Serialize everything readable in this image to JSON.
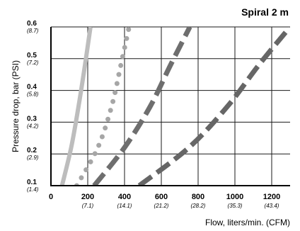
{
  "chart_data": {
    "type": "line",
    "title": "Spiral 2 m",
    "xlabel": "Flow, liters/min. (CFM)",
    "ylabel": "Pressure drop, bar (PSI)",
    "xlim": [
      0,
      1300
    ],
    "ylim": [
      0.1,
      0.6
    ],
    "x_ticks": [
      {
        "value": 0,
        "label": "0",
        "sub": ""
      },
      {
        "value": 200,
        "label": "200",
        "sub": "(7.1)"
      },
      {
        "value": 400,
        "label": "400",
        "sub": "(14.1)"
      },
      {
        "value": 600,
        "label": "600",
        "sub": "(21.2)"
      },
      {
        "value": 800,
        "label": "800",
        "sub": "(28.2)"
      },
      {
        "value": 1000,
        "label": "1000",
        "sub": "(35.3)"
      },
      {
        "value": 1200,
        "label": "1200",
        "sub": "(43.4)"
      }
    ],
    "y_ticks": [
      {
        "value": 0.1,
        "label": "0.1",
        "sub": "(1.4)"
      },
      {
        "value": 0.2,
        "label": "0.2",
        "sub": "(2.9)"
      },
      {
        "value": 0.3,
        "label": "0.3",
        "sub": "(4.2)"
      },
      {
        "value": 0.4,
        "label": "0.4",
        "sub": "(5.8)"
      },
      {
        "value": 0.5,
        "label": "0.5",
        "sub": "(7.2)"
      },
      {
        "value": 0.6,
        "label": "0.6",
        "sub": "(8.7)"
      }
    ],
    "grid": true,
    "series": [
      {
        "color": "#bdbdbd",
        "style": "solid",
        "points": [
          [
            60,
            0.1
          ],
          [
            110,
            0.22
          ],
          [
            150,
            0.35
          ],
          [
            185,
            0.48
          ],
          [
            215,
            0.6
          ]
        ]
      },
      {
        "color": "#a6a6a6",
        "style": "dotted",
        "points": [
          [
            140,
            0.1
          ],
          [
            255,
            0.22
          ],
          [
            330,
            0.35
          ],
          [
            380,
            0.48
          ],
          [
            425,
            0.6
          ]
        ]
      },
      {
        "color": "#6e6e6e",
        "style": "dashed",
        "points": [
          [
            235,
            0.1
          ],
          [
            400,
            0.22
          ],
          [
            540,
            0.35
          ],
          [
            650,
            0.48
          ],
          [
            755,
            0.6
          ]
        ]
      },
      {
        "color": "#666666",
        "style": "dashed",
        "points": [
          [
            480,
            0.1
          ],
          [
            750,
            0.22
          ],
          [
            960,
            0.35
          ],
          [
            1130,
            0.48
          ],
          [
            1300,
            0.6
          ]
        ]
      }
    ]
  }
}
